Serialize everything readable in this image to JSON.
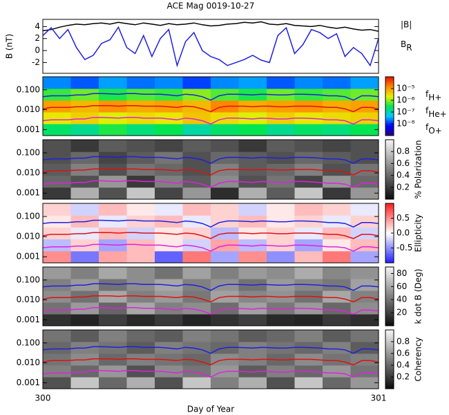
{
  "chart_data": [
    {
      "type": "line",
      "title": "ACE Mag 0019-10-27",
      "ylabel": "B (nT)",
      "xlim": [
        300,
        301
      ],
      "ylim": [
        -3.8,
        5.2
      ],
      "yticks": [
        -2,
        0,
        2,
        4
      ],
      "x": [
        300,
        300.025,
        300.05,
        300.075,
        300.1,
        300.125,
        300.15,
        300.175,
        300.2,
        300.225,
        300.25,
        300.275,
        300.3,
        300.325,
        300.35,
        300.375,
        300.4,
        300.425,
        300.45,
        300.475,
        300.5,
        300.525,
        300.55,
        300.575,
        300.6,
        300.625,
        300.65,
        300.675,
        300.7,
        300.725,
        300.75,
        300.775,
        300.8,
        300.825,
        300.85,
        300.875,
        300.9,
        300.925,
        300.95,
        300.975,
        301
      ],
      "series": [
        {
          "name": "|B|",
          "color": "#000000",
          "values": [
            3.3,
            3.5,
            3.9,
            4.2,
            4.4,
            4.3,
            4.5,
            4.6,
            4.4,
            4.7,
            4.5,
            4.3,
            4.6,
            4.4,
            4.2,
            4.5,
            4.3,
            4.4,
            4.6,
            4.3,
            4.1,
            4.2,
            4.4,
            4.5,
            4.7,
            4.6,
            4.8,
            4.4,
            4.3,
            4.5,
            4.2,
            4.1,
            4.0,
            4.2,
            3.9,
            3.7,
            3.9,
            3.6,
            3.4,
            3.5,
            3.2
          ]
        },
        {
          "name": "BR",
          "color": "#1f1fe0",
          "values": [
            2.5,
            3.8,
            2.0,
            3.5,
            0.5,
            -1.5,
            -0.8,
            1.2,
            1.8,
            3.9,
            0.5,
            -0.5,
            2.5,
            -1.0,
            2.0,
            3.5,
            -2.5,
            1.5,
            3.0,
            0.0,
            -1.0,
            -1.5,
            -2.5,
            -2.0,
            -1.5,
            -0.8,
            -1.6,
            -2.0,
            2.5,
            3.8,
            -0.5,
            1.0,
            3.5,
            3.0,
            2.0,
            2.8,
            -1.0,
            0.5,
            -0.5,
            -2.5,
            2.0
          ]
        }
      ]
    },
    {
      "type": "heatmap",
      "colormap": "rainbow",
      "log_y": true,
      "xlim": [
        300,
        301
      ],
      "ylim": [
        0.0005,
        0.45
      ],
      "yticks": [
        0.001,
        {
          "value": 0.01,
          "label": "0.010"
        },
        {
          "value": 0.1,
          "label": "0.100"
        }
      ],
      "clim": [
        -9,
        -4
      ],
      "cticks": [
        {
          "value": -8,
          "label": "10⁻⁸"
        },
        {
          "value": -7,
          "label": "10⁻⁷"
        },
        {
          "value": -6,
          "label": "10⁻⁶"
        },
        {
          "value": -5,
          "label": "10⁻⁵"
        }
      ],
      "z": [
        [
          -6.6,
          -6.8,
          -6.4,
          -6.7,
          -6.5,
          -6.9,
          -6.6,
          -6.5,
          -6.8,
          -6.6,
          -6.7,
          -6.5
        ],
        [
          -5.6,
          -5.4,
          -5.7,
          -5.5,
          -5.6,
          -5.3,
          -5.5,
          -5.7,
          -5.4,
          -5.6,
          -5.5,
          -5.4
        ],
        [
          -5.0,
          -5.2,
          -4.9,
          -5.1,
          -5.0,
          -5.2,
          -4.8,
          -5.1,
          -5.0,
          -4.9,
          -5.1,
          -5.0
        ],
        [
          -6.3,
          -6.1,
          -6.4,
          -6.2,
          -6.3,
          -6.0,
          -6.2,
          -6.4,
          -6.1,
          -6.3,
          -6.2,
          -6.1
        ],
        [
          -7.6,
          -7.8,
          -7.5,
          -7.7,
          -7.6,
          -7.9,
          -7.6,
          -7.5,
          -7.8,
          -7.6,
          -7.7,
          -7.5
        ]
      ],
      "x": [
        300,
        300.025,
        300.05,
        300.075,
        300.1,
        300.125,
        300.15,
        300.175,
        300.2,
        300.225,
        300.25,
        300.275,
        300.3,
        300.325,
        300.35,
        300.375,
        300.4,
        300.425,
        300.45,
        300.475,
        300.5,
        300.525,
        300.55,
        300.575,
        300.6,
        300.625,
        300.65,
        300.675,
        300.7,
        300.725,
        300.75,
        300.775,
        300.8,
        300.825,
        300.85,
        300.875,
        300.9,
        300.925,
        300.95,
        300.975,
        301
      ],
      "series": [
        {
          "name": "fH+",
          "color": "#1f1fe0",
          "values": [
            0.045,
            0.05,
            0.05,
            0.05,
            0.055,
            0.055,
            0.065,
            0.065,
            0.063,
            0.06,
            0.065,
            0.065,
            0.06,
            0.06,
            0.06,
            0.055,
            0.05,
            0.06,
            0.055,
            0.045,
            0.03,
            0.05,
            0.06,
            0.06,
            0.058,
            0.055,
            0.06,
            0.058,
            0.055,
            0.055,
            0.06,
            0.06,
            0.058,
            0.055,
            0.05,
            0.05,
            0.045,
            0.03,
            0.05,
            0.05,
            0.045
          ]
        },
        {
          "name": "fHe+",
          "color": "#e01010",
          "values": [
            0.011,
            0.013,
            0.013,
            0.013,
            0.014,
            0.014,
            0.016,
            0.016,
            0.016,
            0.015,
            0.016,
            0.016,
            0.015,
            0.015,
            0.015,
            0.014,
            0.013,
            0.015,
            0.014,
            0.011,
            0.008,
            0.013,
            0.015,
            0.015,
            0.015,
            0.014,
            0.015,
            0.015,
            0.014,
            0.014,
            0.015,
            0.015,
            0.015,
            0.014,
            0.013,
            0.013,
            0.011,
            0.008,
            0.013,
            0.013,
            0.011
          ]
        },
        {
          "name": "fO+",
          "color": "#e020e0",
          "values": [
            0.0028,
            0.0031,
            0.0031,
            0.0031,
            0.0034,
            0.0034,
            0.0041,
            0.0041,
            0.0039,
            0.0038,
            0.0041,
            0.0041,
            0.0038,
            0.0038,
            0.0038,
            0.0034,
            0.0031,
            0.0038,
            0.0034,
            0.0028,
            0.0019,
            0.0031,
            0.0038,
            0.0038,
            0.0036,
            0.0034,
            0.0038,
            0.0036,
            0.0034,
            0.0034,
            0.0038,
            0.0038,
            0.0036,
            0.0034,
            0.0031,
            0.0031,
            0.0028,
            0.0019,
            0.0031,
            0.0031,
            0.0028
          ]
        }
      ]
    },
    {
      "type": "heatmap",
      "colormap": "grey",
      "log_y": true,
      "xlim": [
        300,
        301
      ],
      "ylim": [
        0.0005,
        0.45
      ],
      "yticks": [
        0.001,
        {
          "value": 0.01,
          "label": "0.010"
        },
        {
          "value": 0.1,
          "label": "0.100"
        }
      ],
      "clim": [
        0,
        1
      ],
      "cticks": [
        0.2,
        0.4,
        0.6,
        0.8
      ],
      "clabel": "% Polarization",
      "z": [
        [
          0.2,
          0.7,
          0.3,
          0.8,
          0.25,
          0.6,
          0.15,
          0.7,
          0.35,
          0.8,
          0.2,
          0.6
        ],
        [
          0.4,
          0.3,
          0.6,
          0.2,
          0.5,
          0.35,
          0.55,
          0.3,
          0.45,
          0.25,
          0.6,
          0.4
        ],
        [
          0.35,
          0.5,
          0.3,
          0.45,
          0.4,
          0.3,
          0.5,
          0.35,
          0.4,
          0.5,
          0.3,
          0.45
        ],
        [
          0.3,
          0.4,
          0.25,
          0.35,
          0.45,
          0.3,
          0.4,
          0.35,
          0.3,
          0.4,
          0.35,
          0.3
        ],
        [
          0.3,
          0.2,
          0.35,
          0.3,
          0.25,
          0.35,
          0.3,
          0.2,
          0.35,
          0.3,
          0.25,
          0.3
        ]
      ]
    },
    {
      "type": "heatmap",
      "colormap": "bwr",
      "log_y": true,
      "xlim": [
        300,
        301
      ],
      "ylim": [
        0.0005,
        0.45
      ],
      "yticks": [
        0.001,
        {
          "value": 0.01,
          "label": "0.010"
        },
        {
          "value": 0.1,
          "label": "0.100"
        }
      ],
      "clim": [
        -1,
        1
      ],
      "cticks": [
        -0.5,
        {
          "value": 0,
          "label": "0.0"
        },
        0.5
      ],
      "clabel": "Ellipticity",
      "z": [
        [
          0.5,
          -0.6,
          0.4,
          0.3,
          -0.7,
          0.6,
          -0.4,
          0.5,
          -0.5,
          0.3,
          0.6,
          -0.4
        ],
        [
          -0.3,
          0.2,
          -0.4,
          0.3,
          0.1,
          -0.2,
          0.4,
          -0.3,
          0.2,
          -0.4,
          0.1,
          0.3
        ],
        [
          0.2,
          -0.1,
          0.3,
          -0.2,
          0.1,
          0.2,
          -0.3,
          0.1,
          0.2,
          -0.1,
          0.3,
          -0.2
        ],
        [
          0.1,
          0.3,
          -0.1,
          0.2,
          0.3,
          -0.1,
          0.2,
          0.3,
          0.1,
          0.2,
          -0.1,
          0.2
        ],
        [
          0.2,
          -0.2,
          0.3,
          0.1,
          -0.1,
          0.3,
          0.2,
          -0.2,
          0.1,
          0.3,
          0.2,
          -0.1
        ]
      ]
    },
    {
      "type": "heatmap",
      "colormap": "grey",
      "log_y": true,
      "xlim": [
        300,
        301
      ],
      "ylim": [
        0.0005,
        0.45
      ],
      "yticks": [
        0.001,
        {
          "value": 0.01,
          "label": "0.010"
        },
        {
          "value": 0.1,
          "label": "0.100"
        }
      ],
      "clim": [
        0,
        90
      ],
      "cticks": [
        20,
        40,
        60,
        80
      ],
      "clabel": "k dot B (Deg)",
      "z": [
        [
          15,
          10,
          20,
          12,
          18,
          10,
          15,
          20,
          12,
          10,
          18,
          14
        ],
        [
          40,
          55,
          35,
          60,
          45,
          50,
          38,
          58,
          42,
          55,
          36,
          50
        ],
        [
          50,
          40,
          60,
          45,
          55,
          42,
          58,
          48,
          52,
          40,
          60,
          46
        ],
        [
          45,
          55,
          40,
          50,
          60,
          45,
          52,
          40,
          55,
          48,
          42,
          58
        ],
        [
          55,
          45,
          60,
          50,
          40,
          58,
          45,
          55,
          50,
          62,
          48,
          52
        ]
      ]
    },
    {
      "type": "heatmap",
      "colormap": "grey",
      "log_y": true,
      "xlim": [
        300,
        301
      ],
      "ylim": [
        0.0005,
        0.45
      ],
      "yticks": [
        0.001,
        {
          "value": 0.01,
          "label": "0.010"
        },
        {
          "value": 0.1,
          "label": "0.100"
        }
      ],
      "clim": [
        0,
        1
      ],
      "cticks": [
        0.2,
        0.4,
        0.6,
        0.8
      ],
      "clabel": "Coherency",
      "xticks": [
        300,
        301
      ],
      "xlabel": "Day of Year",
      "z": [
        [
          0.3,
          0.8,
          0.4,
          0.7,
          0.3,
          0.8,
          0.5,
          0.7,
          0.3,
          0.8,
          0.4,
          0.6
        ],
        [
          0.5,
          0.4,
          0.6,
          0.3,
          0.55,
          0.45,
          0.6,
          0.35,
          0.5,
          0.4,
          0.6,
          0.45
        ],
        [
          0.45,
          0.55,
          0.4,
          0.5,
          0.45,
          0.4,
          0.55,
          0.5,
          0.4,
          0.55,
          0.45,
          0.5
        ],
        [
          0.4,
          0.5,
          0.45,
          0.35,
          0.5,
          0.45,
          0.4,
          0.5,
          0.45,
          0.4,
          0.5,
          0.35
        ],
        [
          0.45,
          0.35,
          0.5,
          0.4,
          0.35,
          0.5,
          0.45,
          0.35,
          0.4,
          0.5,
          0.35,
          0.45
        ]
      ]
    }
  ]
}
